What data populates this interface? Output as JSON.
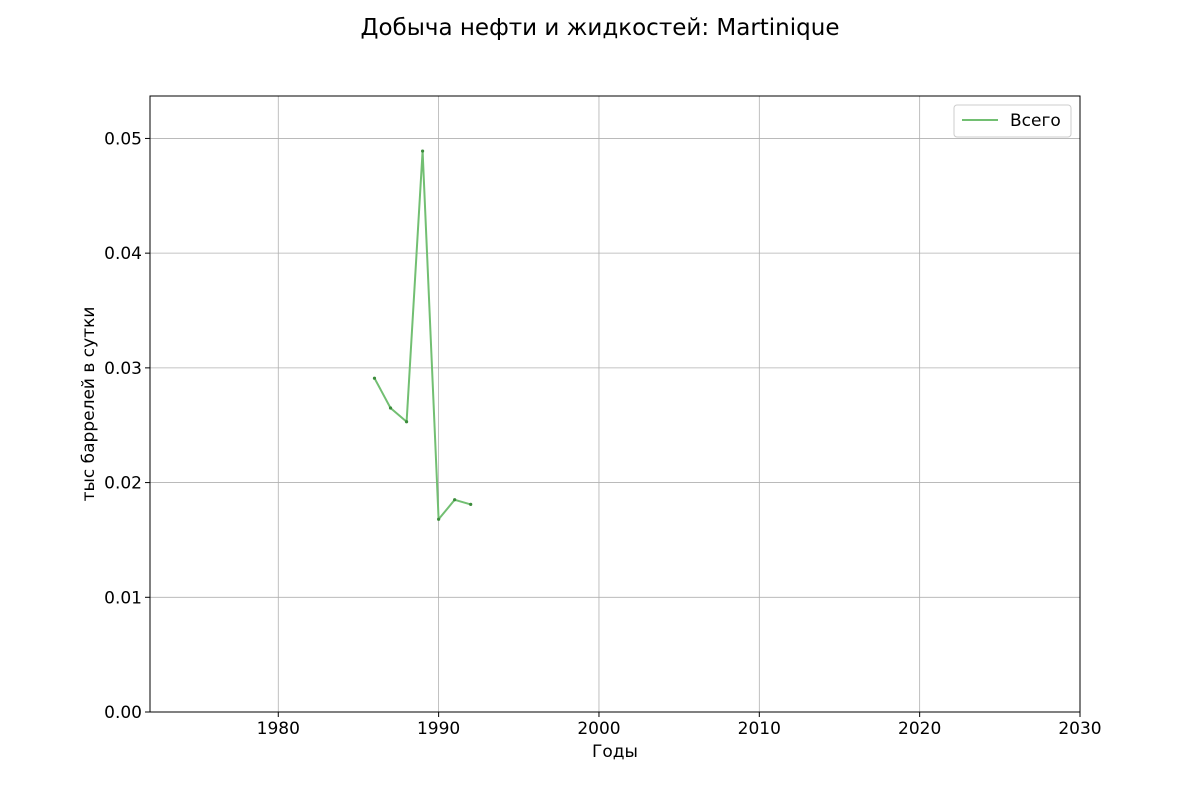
{
  "chart_data": {
    "type": "line",
    "title": "Добыча нефти и жидкостей: Martinique",
    "xlabel": "Годы",
    "ylabel": "тыс баррелей в сутки",
    "xlim": [
      1972,
      2030
    ],
    "ylim": [
      0,
      0.0537
    ],
    "xticks": [
      "1980",
      "1990",
      "2000",
      "2010",
      "2020",
      "2030"
    ],
    "yticks": [
      "0.00",
      "0.01",
      "0.02",
      "0.03",
      "0.04",
      "0.05"
    ],
    "grid": true,
    "legend_position": "top-right",
    "series": [
      {
        "name": "Всего",
        "color": "#72bf72",
        "x": [
          1986,
          1987,
          1988,
          1989,
          1990,
          1991,
          1992
        ],
        "y": [
          0.0291,
          0.0265,
          0.0253,
          0.0489,
          0.0168,
          0.0185,
          0.0181
        ]
      }
    ]
  }
}
